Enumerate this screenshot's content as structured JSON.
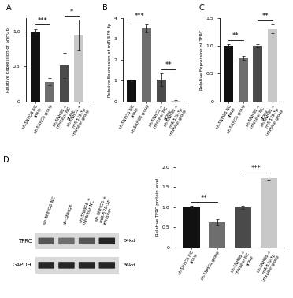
{
  "chart_data": [
    {
      "type": "bar",
      "panel": "A",
      "ylabel": "Relative Expression of SNHG6",
      "categories": [
        "sh-SNHG6 NC group",
        "sh-SNHG6 group",
        "sh-SNHG6 + inhibitor NC group",
        "sh-SNHG6 + miR-579-3p inhibitor group"
      ],
      "values": [
        1.0,
        0.28,
        0.52,
        0.95
      ],
      "errors": [
        0.04,
        0.05,
        0.18,
        0.22
      ],
      "colors": [
        "#111111",
        "#6e6e6e",
        "#4a4a4a",
        "#c8c8c8"
      ],
      "ylim": [
        0,
        1.2
      ],
      "yticks": [
        0,
        0.5,
        1.0
      ],
      "significance": [
        {
          "between": [
            "sh-SNHG6 NC group",
            "sh-SNHG6 group"
          ],
          "label": "***"
        },
        {
          "between": [
            "sh-SNHG6 + inhibitor NC group",
            "sh-SNHG6 + miR-579-3p inhibitor group"
          ],
          "label": "*"
        }
      ]
    },
    {
      "type": "bar",
      "panel": "B",
      "ylabel": "Relative Expression of miR-579-3p",
      "categories": [
        "sh-SNHG6 NC group",
        "sh-SNHG6 group",
        "sh-SNHG6 + inhibitor NC group",
        "sh-SNHG6 + miR-579-3p inhibitor group"
      ],
      "values": [
        1.0,
        3.5,
        1.05,
        0.02
      ],
      "errors": [
        0.05,
        0.2,
        0.3,
        0.02
      ],
      "colors": [
        "#111111",
        "#6e6e6e",
        "#4a4a4a",
        "#c8c8c8"
      ],
      "ylim": [
        0,
        4
      ],
      "yticks": [
        0,
        1,
        2,
        3,
        4
      ],
      "significance": [
        {
          "between": [
            "sh-SNHG6 NC group",
            "sh-SNHG6 group"
          ],
          "label": "***"
        },
        {
          "between": [
            "sh-SNHG6 + inhibitor NC group",
            "sh-SNHG6 + miR-579-3p inhibitor group"
          ],
          "label": "**"
        }
      ]
    },
    {
      "type": "bar",
      "panel": "C",
      "ylabel": "Relative Expression of TFRC",
      "categories": [
        "sh-SNHG6 NC group",
        "sh-SNHG6 group",
        "sh-SNHG6 + inhibitor NC group",
        "sh-SNHG6 + miR-579-3p inhibitor group"
      ],
      "values": [
        1.0,
        0.78,
        1.0,
        1.3
      ],
      "errors": [
        0.03,
        0.04,
        0.03,
        0.08
      ],
      "colors": [
        "#111111",
        "#6e6e6e",
        "#4a4a4a",
        "#c8c8c8"
      ],
      "ylim": [
        0,
        1.5
      ],
      "yticks": [
        0,
        0.5,
        1.0,
        1.5
      ],
      "significance": [
        {
          "between": [
            "sh-SNHG6 NC group",
            "sh-SNHG6 group"
          ],
          "label": "**"
        },
        {
          "between": [
            "sh-SNHG6 + inhibitor NC group",
            "sh-SNHG6 + miR-579-3p inhibitor group"
          ],
          "label": "**"
        }
      ]
    },
    {
      "type": "bar",
      "ylabel": "Relative TFRC protein level",
      "categories": [
        "sh-SNHG6 NC group",
        "sh-SNHG6 group",
        "sh-SNHG6 + inhibitor NC group",
        "sh-SNHG6 + miR-579-3p inhibitor group"
      ],
      "values": [
        1.0,
        0.63,
        1.0,
        1.72
      ],
      "errors": [
        0.03,
        0.08,
        0.04,
        0.04
      ],
      "colors": [
        "#111111",
        "#6e6e6e",
        "#4a4a4a",
        "#c8c8c8"
      ],
      "ylim": [
        0,
        2.0
      ],
      "yticks": [
        0,
        0.5,
        1.0,
        1.5,
        2.0
      ],
      "significance": [
        {
          "between": [
            "sh-SNHG6 NC group",
            "sh-SNHG6 group"
          ],
          "label": "**"
        },
        {
          "between": [
            "sh-SNHG6 + inhibitor NC group",
            "sh-SNHG6 + miR-579-3p inhibitor group"
          ],
          "label": "***"
        }
      ]
    }
  ],
  "blot": {
    "panel": "D",
    "lanes": [
      "sh-SNHG6 NC",
      "sh-SNHG6",
      "sh-SNHG6 + inhibitor NC",
      "sh-SNHG6 + miR-579-3p inhibitor"
    ],
    "bands": [
      {
        "name": "TFRC",
        "size": "84kd"
      },
      {
        "name": "GAPDH",
        "size": "36kd"
      }
    ]
  }
}
